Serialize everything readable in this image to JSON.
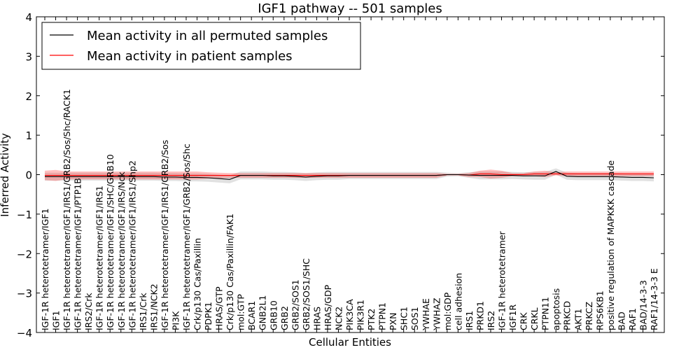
{
  "chart_data": {
    "type": "line",
    "title": "IGF1 pathway -- 501 samples",
    "xlabel": "Cellular Entities",
    "ylabel": "Inferred Activity",
    "ylim": [
      -4,
      4
    ],
    "yticks": [
      "4",
      "3",
      "2",
      "1",
      "0",
      "−1",
      "−2",
      "−3",
      "−4"
    ],
    "legend": {
      "position": "top-left",
      "entries": [
        {
          "label": "Mean activity in all permuted samples",
          "color": "#000000"
        },
        {
          "label": "Mean activity in patient samples",
          "color": "#ff0000"
        }
      ]
    },
    "categories": [
      "IGF-1R heterotetramer/IGF1",
      "IGF1",
      "IGF-1R heterotetramer/IGF1/IRS1/GRB2/Sos/Shc/RACK1",
      "IGF-1R heterotetramer/IGF1/PTP1B",
      "IRS2/Crk",
      "IGF-1R heterotetramer/IGF1/IRS1",
      "IGF-1R heterotetramer/IGF1/SHC/GRB10",
      "IGF-1R heterotetramer/IGF1/IRS/Nck",
      "IGF-1R heterotetramer/IGF1/IRS1/Shp2",
      "IRS1/Crk",
      "IRS1/NCK2",
      "IGF-1R heterotetramer/IGF1/IRS1/GRB2/Sos",
      "PI3K",
      "IGF-1R heterotetramer/IGF1/GRB2/Sos/Shc",
      "Crk/p130 Cas/Paxillin",
      "PDPK1",
      "HRAS/GTP",
      "Crk/p130 Cas/Paxillin/FAK1",
      "mol:GTP",
      "BCAR1",
      "GNB2L1",
      "GRB10",
      "GRB2",
      "GRB2/SOS1",
      "GRB2/SOS1/SHC",
      "HRAS",
      "HRAS/GDP",
      "NCK2",
      "PIK3CA",
      "PIK3R1",
      "PTK2",
      "PTPN1",
      "PXN",
      "SHC1",
      "SOS1",
      "YWHAE",
      "YWHAZ",
      "mol:GDP",
      "cell adhesion",
      "IRS1",
      "PRKD1",
      "IRS2",
      "IGF-1R heterotetramer",
      "IGF1R",
      "CRK",
      "CRKL",
      "PTPN11",
      "apoptosis",
      "PRKCD",
      "AKT1",
      "PRKCZ",
      "RPS6KB1",
      "positive regulation of MAPKKK cascade",
      "BAD",
      "RAF1",
      "BAD/14-3-3",
      "RAF1/14-3-3 E"
    ],
    "series": [
      {
        "name": "Mean activity in all permuted samples",
        "color": "#000000",
        "values": [
          -0.05,
          -0.05,
          -0.05,
          -0.05,
          -0.05,
          -0.05,
          -0.05,
          -0.05,
          -0.05,
          -0.05,
          -0.05,
          -0.06,
          -0.06,
          -0.07,
          -0.07,
          -0.08,
          -0.1,
          -0.12,
          -0.02,
          -0.02,
          -0.02,
          -0.03,
          -0.03,
          -0.04,
          -0.06,
          -0.04,
          -0.03,
          -0.03,
          -0.02,
          -0.02,
          -0.02,
          -0.02,
          -0.02,
          -0.02,
          -0.02,
          -0.02,
          -0.02,
          0.0,
          0.0,
          -0.01,
          -0.02,
          -0.02,
          -0.02,
          -0.02,
          -0.03,
          -0.03,
          -0.03,
          0.08,
          -0.04,
          -0.05,
          -0.05,
          -0.05,
          -0.05,
          -0.06,
          -0.07,
          -0.07,
          -0.08
        ],
        "band_upper": [
          0.05,
          0.05,
          0.05,
          0.05,
          0.05,
          0.05,
          0.05,
          0.05,
          0.05,
          0.05,
          0.05,
          0.04,
          0.04,
          0.03,
          0.03,
          0.02,
          0.0,
          -0.02,
          0.08,
          0.08,
          0.08,
          0.07,
          0.07,
          0.06,
          0.04,
          0.06,
          0.07,
          0.07,
          0.07,
          0.07,
          0.07,
          0.07,
          0.07,
          0.07,
          0.07,
          0.07,
          0.07,
          0.05,
          0.04,
          0.06,
          0.08,
          0.08,
          0.08,
          0.07,
          0.06,
          0.07,
          0.07,
          0.16,
          0.05,
          0.04,
          0.04,
          0.04,
          0.04,
          0.03,
          0.02,
          0.02,
          0.01
        ],
        "band_lower": [
          -0.15,
          -0.15,
          -0.15,
          -0.15,
          -0.15,
          -0.15,
          -0.15,
          -0.15,
          -0.15,
          -0.15,
          -0.15,
          -0.16,
          -0.16,
          -0.17,
          -0.17,
          -0.18,
          -0.2,
          -0.22,
          -0.12,
          -0.12,
          -0.12,
          -0.13,
          -0.13,
          -0.14,
          -0.16,
          -0.14,
          -0.13,
          -0.13,
          -0.11,
          -0.11,
          -0.11,
          -0.11,
          -0.11,
          -0.11,
          -0.11,
          -0.11,
          -0.11,
          -0.05,
          -0.04,
          -0.08,
          -0.12,
          -0.12,
          -0.12,
          -0.11,
          -0.12,
          -0.13,
          -0.13,
          0.0,
          -0.13,
          -0.14,
          -0.14,
          -0.14,
          -0.14,
          -0.15,
          -0.16,
          -0.16,
          -0.17
        ]
      },
      {
        "name": "Mean activity in patient samples",
        "color": "#ff0000",
        "values": [
          -0.02,
          -0.02,
          -0.02,
          -0.02,
          -0.02,
          -0.02,
          -0.02,
          -0.02,
          -0.02,
          -0.02,
          -0.02,
          -0.02,
          -0.02,
          -0.02,
          -0.02,
          -0.02,
          -0.02,
          -0.02,
          -0.02,
          -0.02,
          -0.02,
          -0.02,
          -0.02,
          -0.02,
          -0.02,
          -0.02,
          -0.02,
          -0.02,
          -0.02,
          -0.02,
          -0.02,
          -0.02,
          -0.02,
          -0.02,
          -0.02,
          -0.02,
          -0.02,
          0.0,
          0.0,
          -0.01,
          0.02,
          0.02,
          0.0,
          0.0,
          0.0,
          0.02,
          0.02,
          0.02,
          0.02,
          0.02,
          0.02,
          0.02,
          0.02,
          0.02,
          0.02,
          0.02,
          0.02
        ],
        "band_upper": [
          0.1,
          0.12,
          0.08,
          0.08,
          0.08,
          0.08,
          0.08,
          0.08,
          0.08,
          0.08,
          0.08,
          0.08,
          0.08,
          0.08,
          0.08,
          0.06,
          0.05,
          0.04,
          0.04,
          0.04,
          0.04,
          0.04,
          0.04,
          0.04,
          0.04,
          0.04,
          0.04,
          0.04,
          0.04,
          0.04,
          0.04,
          0.04,
          0.04,
          0.04,
          0.04,
          0.04,
          0.04,
          0.02,
          0.02,
          0.04,
          0.1,
          0.13,
          0.1,
          0.04,
          0.04,
          0.08,
          0.1,
          0.06,
          0.08,
          0.08,
          0.08,
          0.08,
          0.08,
          0.08,
          0.08,
          0.08,
          0.08
        ],
        "band_lower": [
          -0.14,
          -0.16,
          -0.12,
          -0.12,
          -0.12,
          -0.12,
          -0.12,
          -0.12,
          -0.12,
          -0.12,
          -0.12,
          -0.12,
          -0.12,
          -0.12,
          -0.12,
          -0.1,
          -0.09,
          -0.08,
          -0.08,
          -0.08,
          -0.08,
          -0.08,
          -0.08,
          -0.08,
          -0.08,
          -0.08,
          -0.08,
          -0.08,
          -0.08,
          -0.08,
          -0.08,
          -0.08,
          -0.08,
          -0.08,
          -0.08,
          -0.08,
          -0.08,
          -0.02,
          -0.02,
          -0.06,
          -0.06,
          -0.1,
          -0.08,
          -0.04,
          -0.04,
          -0.04,
          -0.06,
          -0.02,
          -0.04,
          -0.04,
          -0.04,
          -0.04,
          -0.04,
          -0.04,
          -0.04,
          -0.04,
          -0.04
        ]
      }
    ]
  }
}
